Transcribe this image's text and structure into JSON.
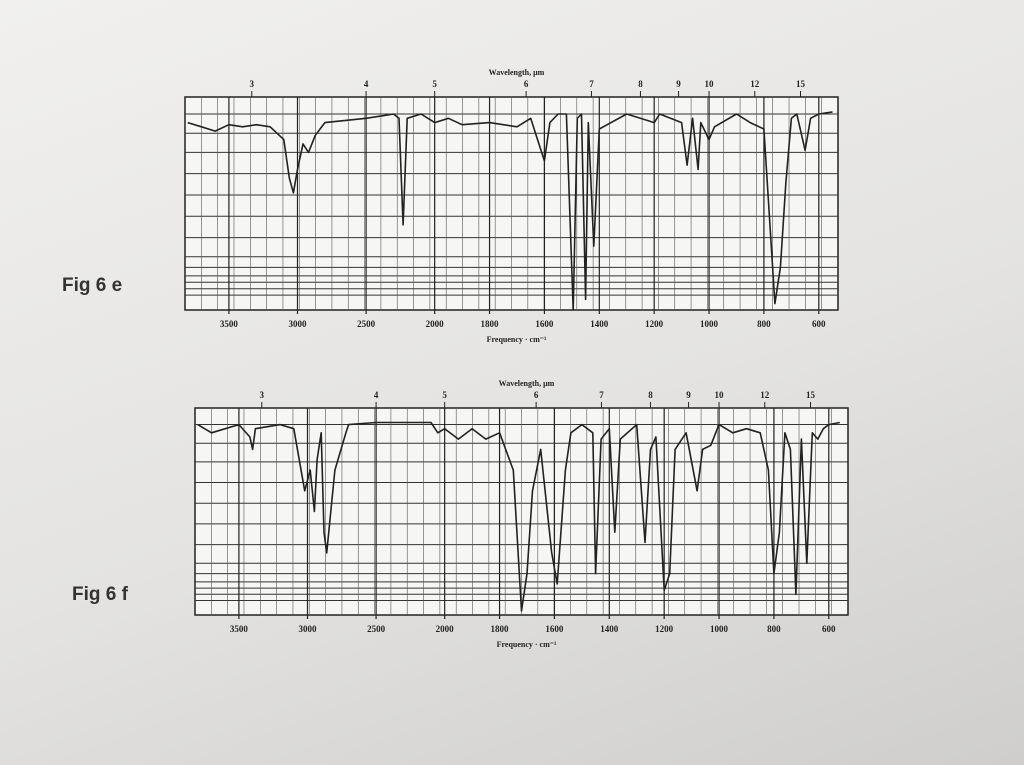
{
  "chart_data": [
    {
      "type": "line",
      "figure_label": "Fig 6 e",
      "top_axis_label": "Wavelength, μm",
      "xlabel": "Frequency · cm⁻¹",
      "x": [
        3800,
        3700,
        3600,
        3500,
        3400,
        3300,
        3200,
        3100,
        3060,
        3030,
        3000,
        2960,
        2920,
        2870,
        2800,
        2500,
        2400,
        2300,
        2260,
        2230,
        2200,
        2100,
        2000,
        1950,
        1900,
        1800,
        1700,
        1650,
        1600,
        1580,
        1550,
        1520,
        1495,
        1480,
        1465,
        1450,
        1440,
        1420,
        1400,
        1300,
        1200,
        1180,
        1100,
        1080,
        1060,
        1040,
        1030,
        1000,
        980,
        900,
        850,
        800,
        760,
        740,
        720,
        700,
        680,
        650,
        630,
        600,
        550
      ],
      "values": [
        88,
        86,
        84,
        87,
        86,
        87,
        86,
        80,
        62,
        55,
        66,
        78,
        74,
        82,
        88,
        90,
        91,
        92,
        90,
        40,
        90,
        92,
        88,
        90,
        87,
        88,
        86,
        90,
        70,
        88,
        92,
        92,
        0,
        90,
        92,
        5,
        88,
        30,
        85,
        92,
        88,
        92,
        88,
        68,
        90,
        66,
        88,
        80,
        86,
        92,
        88,
        85,
        3,
        20,
        60,
        90,
        92,
        75,
        90,
        92,
        93
      ],
      "color": "#222",
      "xlim": [
        3820,
        530
      ],
      "ylim": [
        0,
        100
      ],
      "x_scale_break": 2000,
      "xticks": [
        3500,
        3000,
        2500,
        2000,
        1800,
        1600,
        1400,
        1200,
        1000,
        800,
        600
      ],
      "top_ticks": [
        3,
        4,
        5,
        6,
        7,
        8,
        9,
        10,
        12,
        15
      ]
    },
    {
      "type": "line",
      "figure_label": "Fig 6 f",
      "top_axis_label": "Wavelength, μm",
      "xlabel": "Frequency · cm⁻¹",
      "x": [
        3800,
        3700,
        3600,
        3500,
        3420,
        3400,
        3380,
        3200,
        3100,
        3020,
        2980,
        2950,
        2930,
        2900,
        2880,
        2860,
        2800,
        2720,
        2700,
        2500,
        2200,
        2100,
        2050,
        2000,
        1950,
        1900,
        1850,
        1800,
        1750,
        1720,
        1700,
        1680,
        1650,
        1610,
        1590,
        1560,
        1540,
        1500,
        1460,
        1450,
        1430,
        1400,
        1380,
        1360,
        1300,
        1270,
        1250,
        1230,
        1200,
        1180,
        1160,
        1120,
        1080,
        1060,
        1030,
        1000,
        950,
        900,
        850,
        820,
        800,
        780,
        760,
        740,
        720,
        700,
        680,
        660,
        640,
        620,
        600,
        560
      ],
      "values": [
        92,
        88,
        90,
        92,
        86,
        80,
        90,
        92,
        90,
        60,
        70,
        50,
        75,
        88,
        40,
        30,
        70,
        88,
        92,
        93,
        93,
        93,
        88,
        90,
        85,
        90,
        85,
        88,
        70,
        2,
        20,
        60,
        80,
        30,
        15,
        70,
        88,
        92,
        88,
        20,
        85,
        90,
        40,
        85,
        92,
        35,
        80,
        86,
        12,
        20,
        80,
        88,
        60,
        80,
        82,
        92,
        88,
        90,
        88,
        70,
        20,
        40,
        88,
        80,
        10,
        85,
        25,
        88,
        85,
        90,
        92,
        93
      ],
      "color": "#222",
      "xlim": [
        3820,
        530
      ],
      "ylim": [
        0,
        100
      ],
      "x_scale_break": 2000,
      "xticks": [
        3500,
        3000,
        2500,
        2000,
        1800,
        1600,
        1400,
        1200,
        1000,
        800,
        600
      ],
      "top_ticks": [
        3,
        4,
        5,
        6,
        7,
        8,
        9,
        10,
        12,
        15
      ]
    }
  ]
}
